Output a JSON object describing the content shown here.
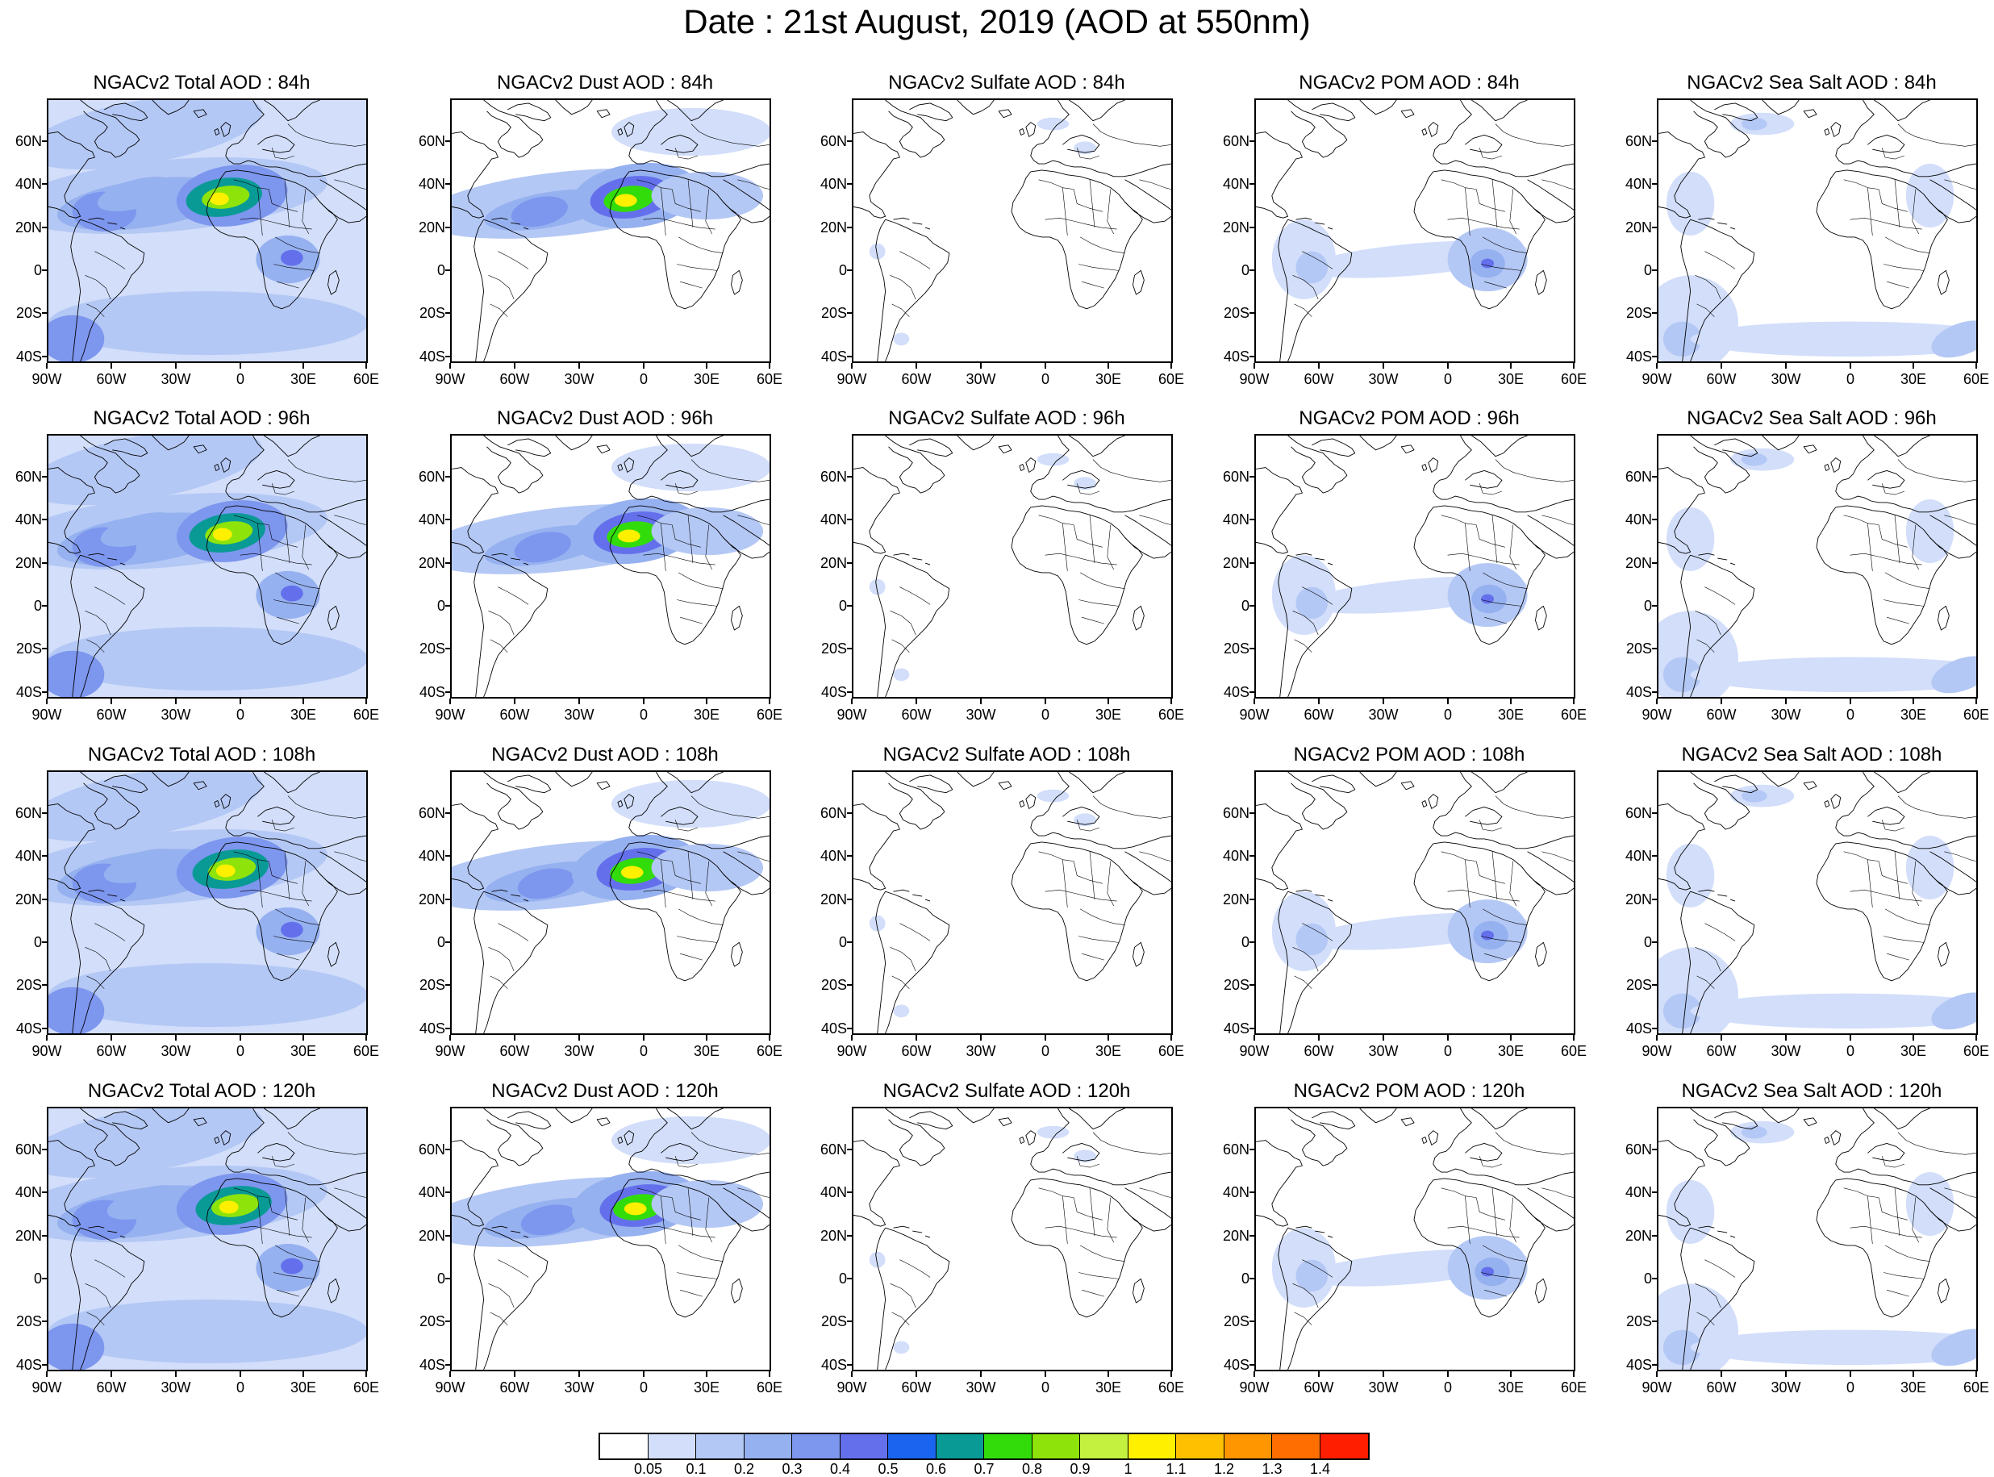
{
  "title": "Date : 21st August, 2019 (AOD at 550nm)",
  "lat_labels": [
    "60N",
    "40N",
    "20N",
    "0",
    "20S",
    "40S"
  ],
  "lon_labels": [
    "90W",
    "60W",
    "30W",
    "0",
    "30E",
    "60E"
  ],
  "panels": [
    {
      "title": "NGACv2 Total AOD : 84h",
      "species": "total"
    },
    {
      "title": "NGACv2 Dust AOD : 84h",
      "species": "dust"
    },
    {
      "title": "NGACv2 Sulfate AOD : 84h",
      "species": "sulfate"
    },
    {
      "title": "NGACv2 POM AOD : 84h",
      "species": "pom"
    },
    {
      "title": "NGACv2 Sea Salt AOD : 84h",
      "species": "seasalt"
    },
    {
      "title": "NGACv2 Total AOD : 96h",
      "species": "total"
    },
    {
      "title": "NGACv2 Dust AOD : 96h",
      "species": "dust"
    },
    {
      "title": "NGACv2 Sulfate AOD : 96h",
      "species": "sulfate"
    },
    {
      "title": "NGACv2 POM AOD : 96h",
      "species": "pom"
    },
    {
      "title": "NGACv2 Sea Salt AOD : 96h",
      "species": "seasalt"
    },
    {
      "title": "NGACv2 Total AOD : 108h",
      "species": "total"
    },
    {
      "title": "NGACv2 Dust AOD : 108h",
      "species": "dust"
    },
    {
      "title": "NGACv2 Sulfate AOD : 108h",
      "species": "sulfate"
    },
    {
      "title": "NGACv2 POM AOD : 108h",
      "species": "pom"
    },
    {
      "title": "NGACv2 Sea Salt AOD : 108h",
      "species": "seasalt"
    },
    {
      "title": "NGACv2 Total AOD : 120h",
      "species": "total"
    },
    {
      "title": "NGACv2 Dust AOD : 120h",
      "species": "dust"
    },
    {
      "title": "NGACv2 Sulfate AOD : 120h",
      "species": "sulfate"
    },
    {
      "title": "NGACv2 POM AOD : 120h",
      "species": "pom"
    },
    {
      "title": "NGACv2 Sea Salt  AOD : 120h",
      "species": "seasalt"
    }
  ],
  "colorbar": {
    "labels": [
      "0.05",
      "0.1",
      "0.2",
      "0.3",
      "0.4",
      "0.5",
      "0.6",
      "0.7",
      "0.8",
      "0.9",
      "1",
      "1.1",
      "1.2",
      "1.3",
      "1.4"
    ],
    "colors": [
      "#ffffff",
      "#d2defa",
      "#b4c8f5",
      "#96b1f0",
      "#7d96ee",
      "#6470eb",
      "#1a64f0",
      "#0a9a96",
      "#32dc0a",
      "#8ee40a",
      "#c4f040",
      "#fff000",
      "#ffc000",
      "#ff9600",
      "#ff6e00",
      "#ff1e00"
    ]
  }
}
